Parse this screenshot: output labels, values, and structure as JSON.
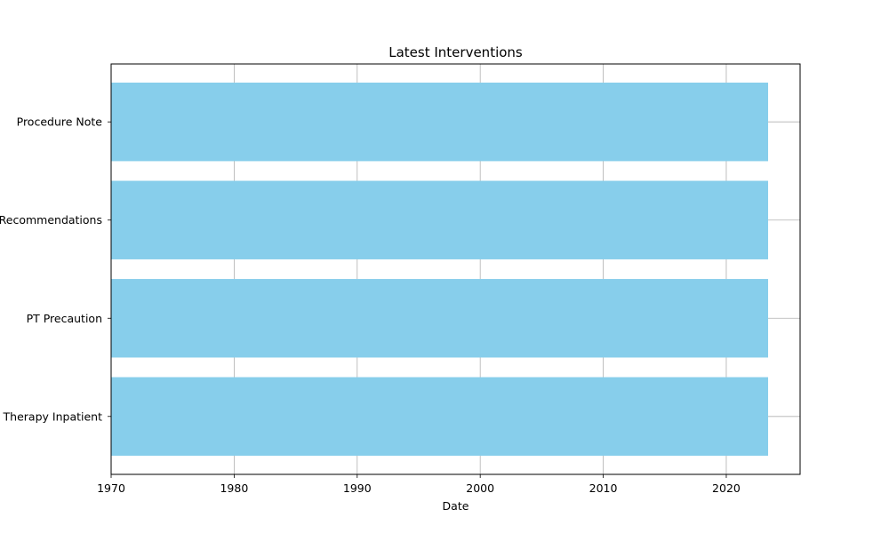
{
  "chart_data": {
    "type": "bar",
    "orientation": "horizontal",
    "title": "Latest Interventions",
    "xlabel": "Date",
    "ylabel": "",
    "categories": [
      "Therapy Inpatient",
      "PT Precaution",
      "Recommendations",
      "Procedure Note"
    ],
    "values": [
      "2023-05",
      "2023-05",
      "2023-05",
      "2023-05"
    ],
    "value_years": [
      2023.4,
      2023.4,
      2023.4,
      2023.4
    ],
    "xlim": [
      1970,
      2026
    ],
    "xticks": [
      "1970",
      "1980",
      "1990",
      "2000",
      "2010",
      "2020"
    ],
    "grid": true,
    "bar_color": "#87CEEB",
    "grid_color": "#b0b0b0"
  }
}
